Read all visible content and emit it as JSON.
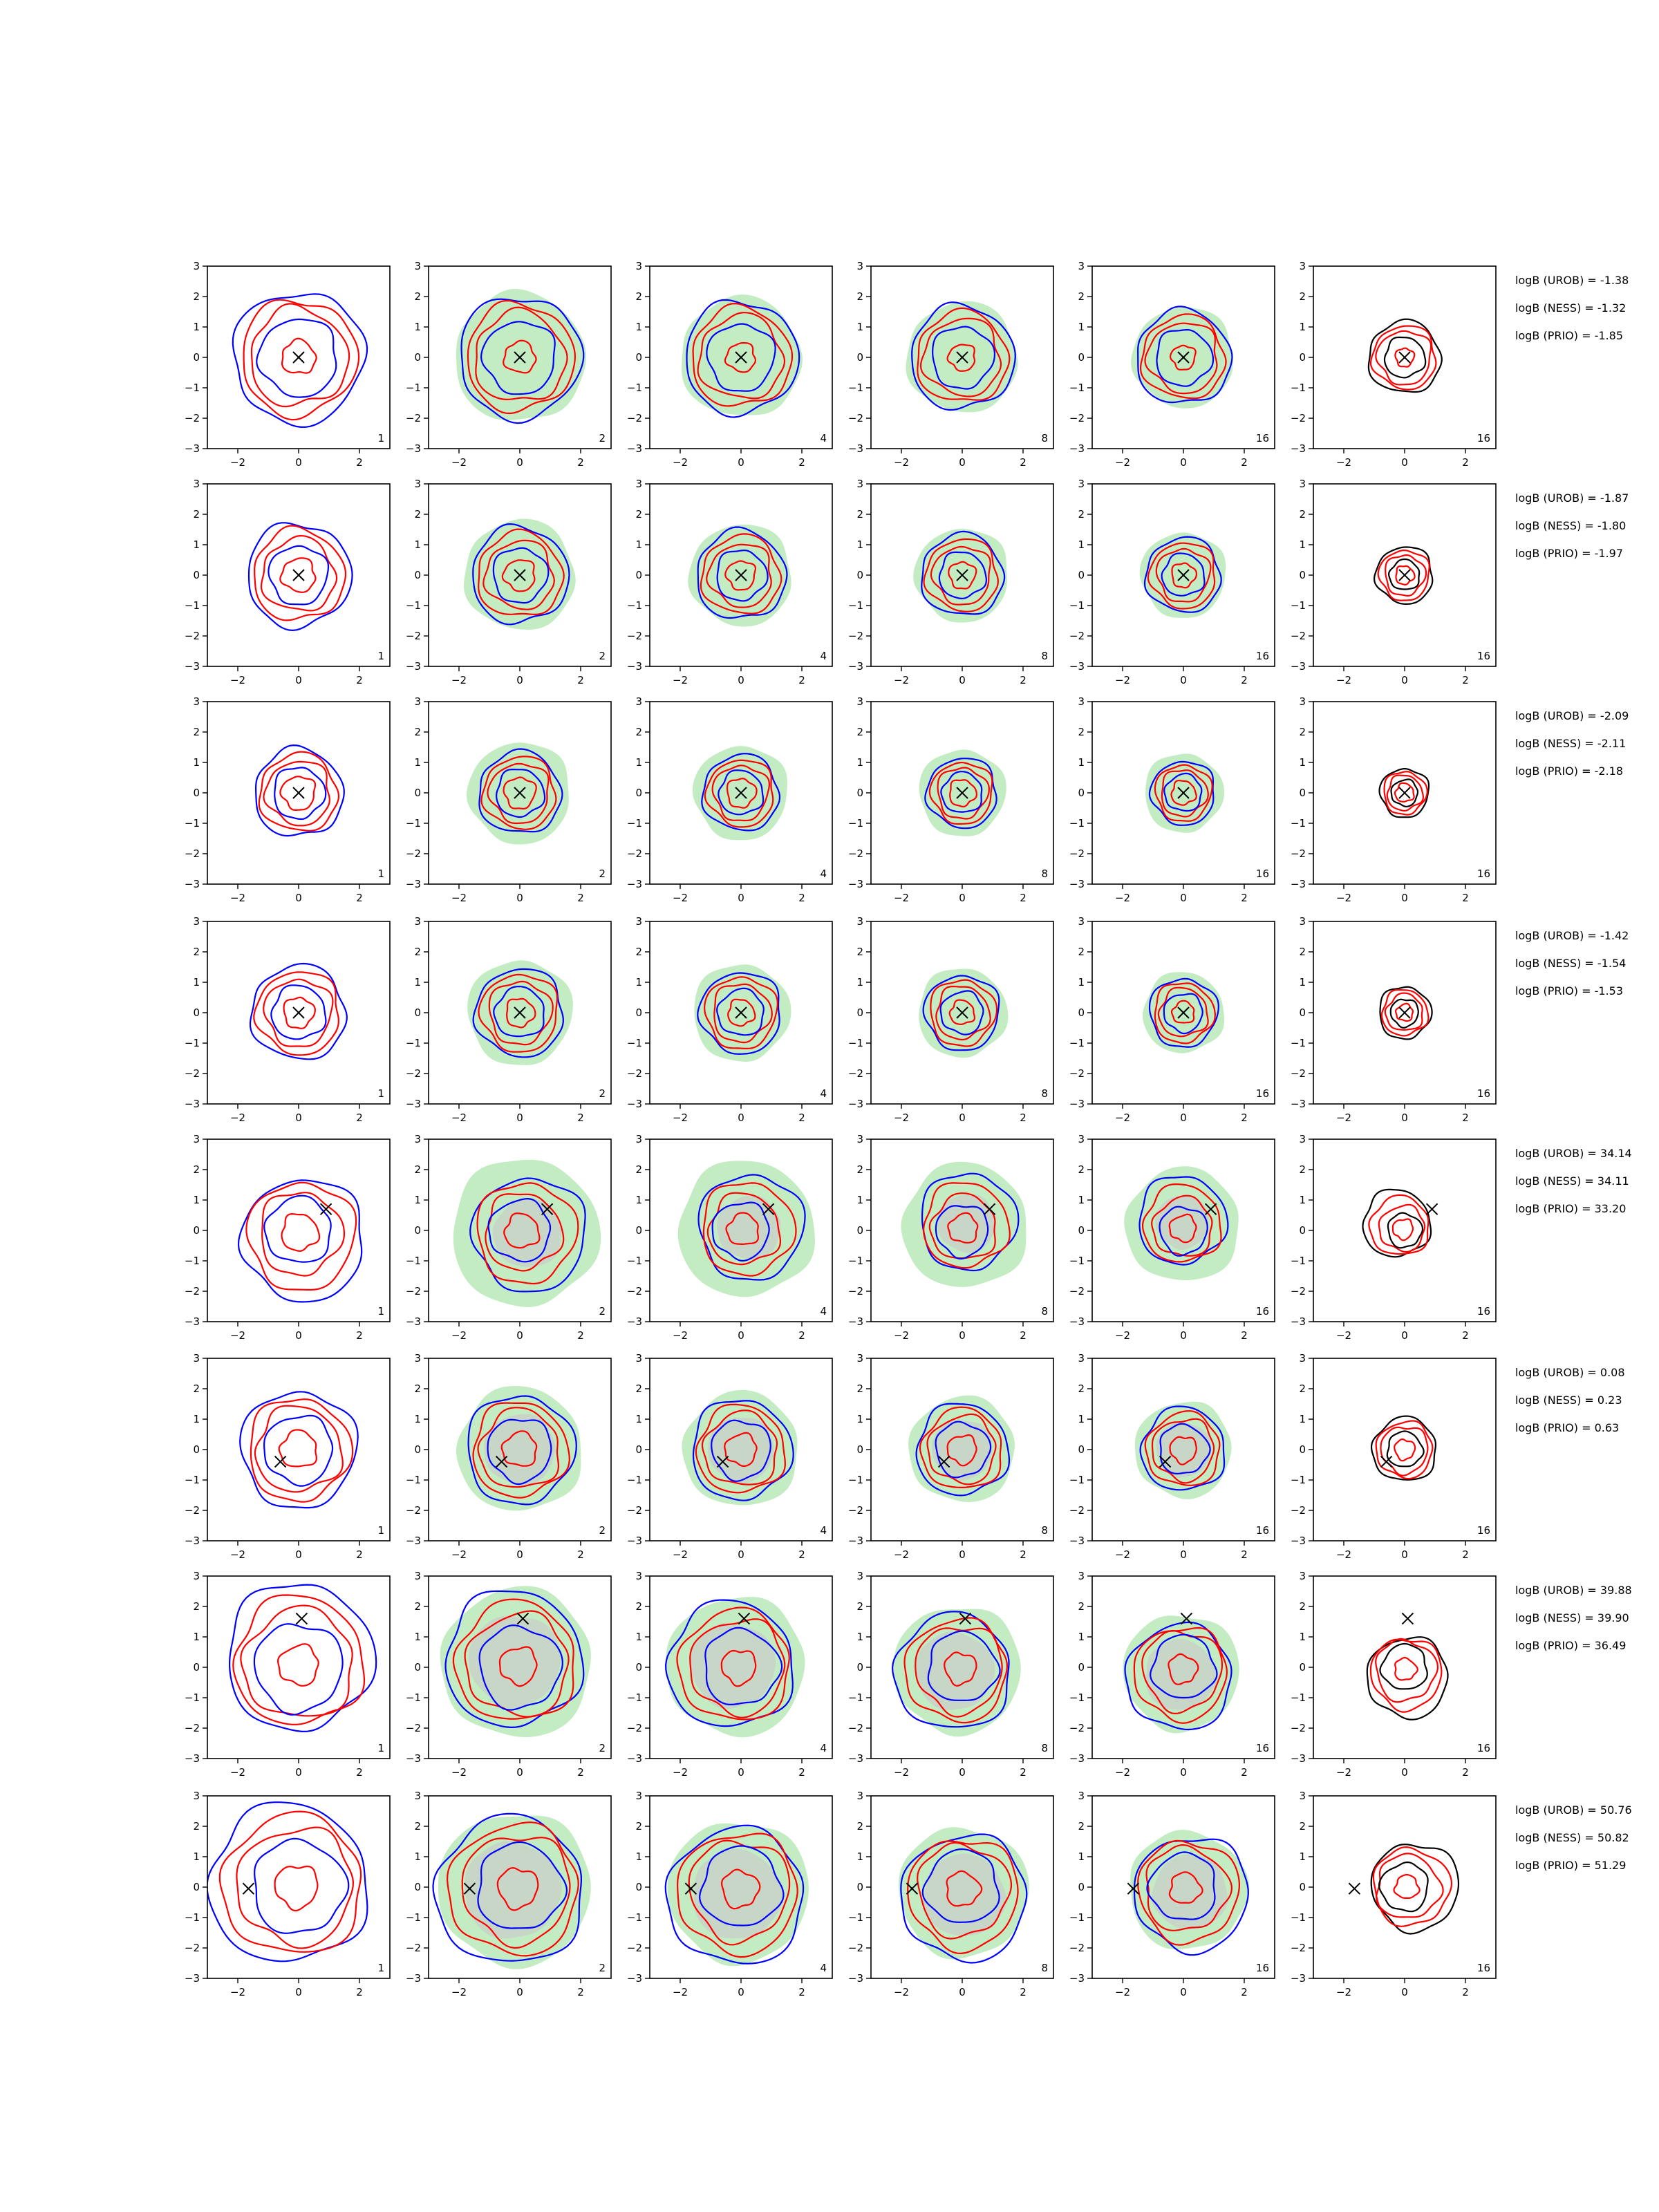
{
  "chart_data": {
    "type": "contour",
    "rows": 8,
    "cols": 6,
    "xlim": [
      -3,
      3
    ],
    "ylim": [
      -3,
      3
    ],
    "xticks": [
      -2,
      0,
      2
    ],
    "yticks": [
      -3,
      -2,
      -1,
      0,
      1,
      2,
      3
    ],
    "xtick_labels": [
      "−2",
      "0",
      "2"
    ],
    "ytick_labels": [
      "−3",
      "−2",
      "−1",
      "0",
      "1",
      "2",
      "3"
    ],
    "column_labels": [
      "1",
      "2",
      "4",
      "8",
      "16",
      "16"
    ],
    "colors": {
      "red": "#ff0000",
      "blue": "#0000ff",
      "black": "#000000",
      "green": "#c3ecc3",
      "gray": "#c9cdc9"
    },
    "panels": [
      {
        "marker": [
          0.0,
          0.0
        ],
        "annotations": [
          "logB (UROB) = -1.38",
          "logB (NESS) = -1.32",
          "logB (PRIO) = -1.85"
        ]
      },
      {
        "marker": [
          0.0,
          0.0
        ],
        "annotations": [
          "logB (UROB) = -1.87",
          "logB (NESS) = -1.80",
          "logB (PRIO) = -1.97"
        ]
      },
      {
        "marker": [
          0.0,
          0.0
        ],
        "annotations": [
          "logB (UROB) = -2.09",
          "logB (NESS) = -2.11",
          "logB (PRIO) = -2.18"
        ]
      },
      {
        "marker": [
          0.0,
          0.0
        ],
        "annotations": [
          "logB (UROB) = -1.42",
          "logB (NESS) = -1.54",
          "logB (PRIO) = -1.53"
        ]
      },
      {
        "marker": [
          0.9,
          0.7
        ],
        "annotations": [
          "logB (UROB) = 34.14",
          "logB (NESS) = 34.11",
          "logB (PRIO) = 33.20"
        ]
      },
      {
        "marker": [
          -0.6,
          -0.4
        ],
        "annotations": [
          "logB (UROB) = 0.08",
          "logB (NESS) = 0.23",
          "logB (PRIO) = 0.63"
        ]
      },
      {
        "marker": [
          0.1,
          1.6
        ],
        "annotations": [
          "logB (UROB) = 39.88",
          "logB (NESS) = 39.90",
          "logB (PRIO) = 36.49"
        ]
      },
      {
        "marker": [
          -1.65,
          -0.05
        ],
        "annotations": [
          "logB (UROB) = 50.76",
          "logB (NESS) = 50.82",
          "logB (PRIO) = 51.29"
        ]
      }
    ],
    "contour_radii": {
      "outer_blue": [
        2.15,
        1.7,
        1.45,
        1.55,
        2.0,
        1.9,
        2.4,
        2.6
      ],
      "mid_red": [
        1.6,
        1.2,
        1.05,
        1.1,
        1.35,
        1.4,
        1.8,
        1.9
      ],
      "inner_red": [
        0.55,
        0.55,
        0.55,
        0.5,
        0.6,
        0.6,
        0.65,
        0.7
      ],
      "green_fill": [
        2.3,
        1.95,
        1.8,
        1.85,
        2.6,
        2.2,
        2.65,
        2.7
      ]
    }
  }
}
